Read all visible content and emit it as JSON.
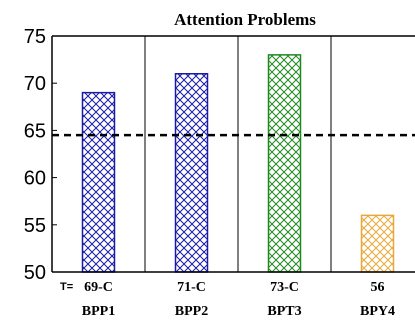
{
  "chart_data": {
    "type": "bar",
    "title": "Attention Problems",
    "categories": [
      "BPP1",
      "BPP2",
      "BPT3",
      "BPY4"
    ],
    "values": [
      69,
      71,
      73,
      56
    ],
    "value_labels": [
      "69-C",
      "71-C",
      "73-C",
      "56"
    ],
    "t_prefix": "T=",
    "ylim": [
      50,
      75
    ],
    "yticks": [
      50,
      55,
      60,
      65,
      70,
      75
    ],
    "reference_line": 64.5,
    "bar_colors": [
      "#1a1aa8",
      "#1a1aa8",
      "#1e8a1e",
      "#e8a838"
    ],
    "bar_pattern": "crosshatch",
    "grid": false,
    "legend": "none"
  }
}
